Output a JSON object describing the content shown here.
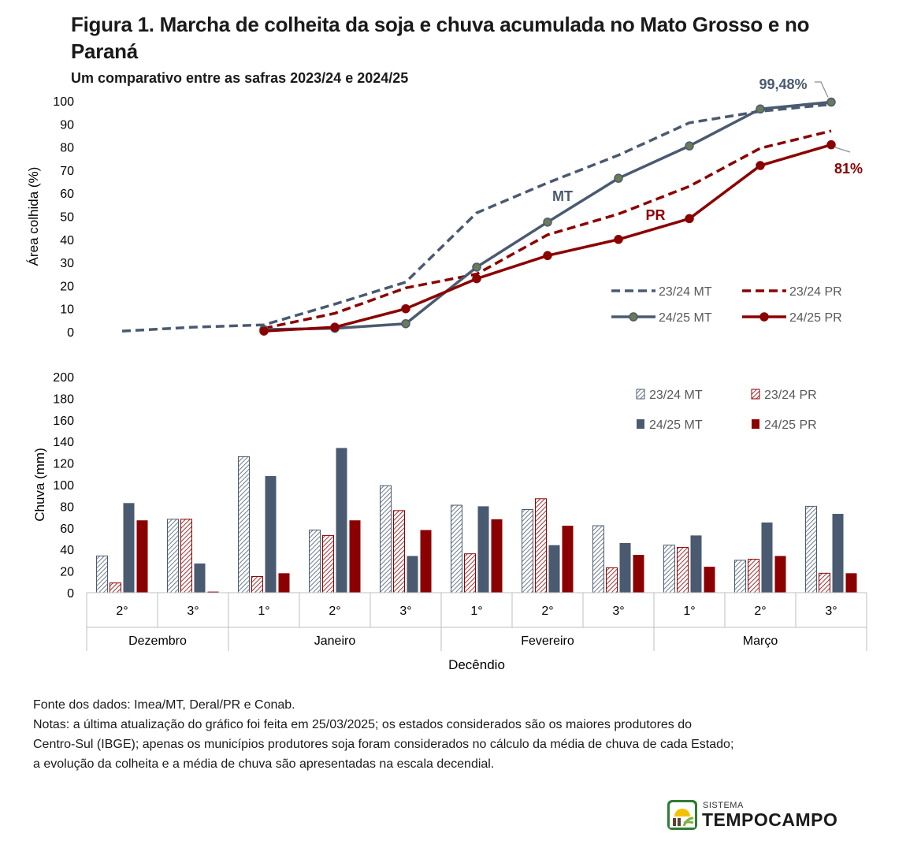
{
  "header": {
    "title": "Figura 1. Marcha de colheita da soja e chuva acumulada no Mato Grosso e no Paraná",
    "subtitle": "Um comparativo entre as safras 2023/24  e 2024/25"
  },
  "chart_data": [
    {
      "type": "line",
      "title": "",
      "ylabel": "Área colhida (%)",
      "xlabel": "",
      "ylim": [
        0,
        100
      ],
      "yticks": [
        "0",
        "10",
        "20",
        "30",
        "40",
        "50",
        "60",
        "70",
        "80",
        "90",
        "100"
      ],
      "categories": [
        "Dez 2°",
        "Dez 3°",
        "Jan 1°",
        "Jan 2°",
        "Jan 3°",
        "Fev 1°",
        "Fev 2°",
        "Fev 3°",
        "Mar 1°",
        "Mar 2°",
        "Mar 3°"
      ],
      "series": [
        {
          "name": "23/24 MT",
          "color": "#4a5a70",
          "dash": true,
          "values": [
            0.3,
            2,
            3,
            12,
            21.5,
            51.5,
            64.5,
            76.5,
            90.5,
            95.5,
            98.5
          ]
        },
        {
          "name": "23/24 PR",
          "color": "#8b0000",
          "dash": true,
          "values": [
            null,
            null,
            1.5,
            8,
            19,
            25,
            42,
            51,
            63,
            79.5,
            87
          ]
        },
        {
          "name": "24/25 MT",
          "color": "#4a5a70",
          "dash": false,
          "values": [
            null,
            null,
            1,
            1.5,
            3.5,
            28,
            47.5,
            66.5,
            80.5,
            96.5,
            99.48
          ]
        },
        {
          "name": "24/25 PR",
          "color": "#8b0000",
          "dash": false,
          "values": [
            null,
            null,
            0.3,
            2,
            10,
            23,
            33,
            40,
            49,
            72,
            81
          ]
        }
      ],
      "annotations": {
        "mt_label": "MT",
        "pr_label": "PR",
        "mt_end": "99,48%",
        "pr_end": "81%"
      }
    },
    {
      "type": "bar",
      "title": "",
      "ylabel": "Chuva (mm)",
      "xlabel": "Decêndio",
      "ylim": [
        0,
        200
      ],
      "yticks": [
        "0",
        "20",
        "40",
        "60",
        "80",
        "100",
        "120",
        "140",
        "160",
        "180",
        "200"
      ],
      "categories": [
        "2°",
        "3°",
        "1°",
        "2°",
        "3°",
        "1°",
        "2°",
        "3°",
        "1°",
        "2°",
        "3°"
      ],
      "groups": [
        {
          "label": "Dezembro",
          "span": 2
        },
        {
          "label": "Janeiro",
          "span": 3
        },
        {
          "label": "Fevereiro",
          "span": 3
        },
        {
          "label": "Março",
          "span": 3
        }
      ],
      "series": [
        {
          "name": "23/24 MT",
          "color": "#4a5a70",
          "pattern": "hatch",
          "values": [
            34,
            68,
            126,
            58,
            99,
            81,
            77,
            62,
            44,
            30,
            80
          ]
        },
        {
          "name": "23/24 PR",
          "color": "#8b0000",
          "pattern": "hatch",
          "values": [
            9,
            68,
            15,
            53,
            76,
            36,
            87,
            23,
            42,
            31,
            18
          ]
        },
        {
          "name": "24/25 MT",
          "color": "#4a5a70",
          "pattern": "solid",
          "values": [
            83,
            27,
            108,
            134,
            34,
            80,
            44,
            46,
            53,
            65,
            73
          ]
        },
        {
          "name": "24/25 PR",
          "color": "#8b0000",
          "pattern": "solid",
          "values": [
            67,
            1,
            18,
            67,
            58,
            68,
            62,
            35,
            24,
            34,
            18
          ]
        }
      ]
    }
  ],
  "notes": {
    "source": "Fonte dos dados: Imea/MT, Deral/PR e Conab.",
    "line1": "Notas: a última atualização do gráfico foi feita em 25/03/2025; os estados considerados são os maiores produtores do",
    "line2": "Centro-Sul (IBGE); apenas os municípios produtores soja foram considerados no cálculo da média de chuva de cada Estado;",
    "line3": "a evolução da colheita e a média de chuva são apresentadas na escala decendial."
  },
  "logo": {
    "small": "SISTEMA",
    "big": "TEMPOCAMPO",
    "icon": "sun-field-logo-icon"
  }
}
